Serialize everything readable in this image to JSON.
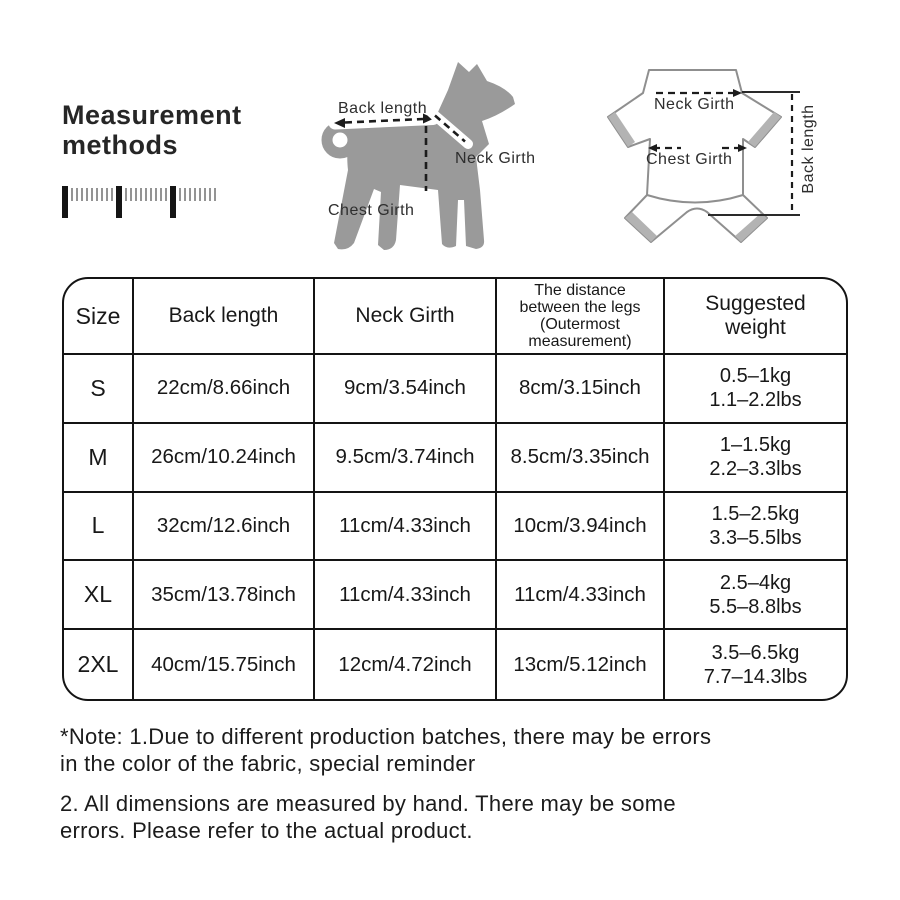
{
  "title": "Measurement\nmethods",
  "theme": {
    "text": "#1f1f1f",
    "dog_gray": "#9a9a9a",
    "outline": "#8f8f8f",
    "cuff": "#b3b3b3",
    "border": "#141414",
    "bg": "#ffffff",
    "dash": "#1c1c1c"
  },
  "icons": {
    "ruler": {
      "name": "ruler-icon",
      "majors": 3,
      "minors": [
        9,
        9,
        8
      ]
    }
  },
  "dog_diagram": {
    "back_length": "Back length",
    "neck_girth": "Neck Girth",
    "chest_girth": "Chest Girth"
  },
  "garment_diagram": {
    "neck_girth": "Neck Girth",
    "chest_girth": "Chest Girth",
    "back_length": "Back length"
  },
  "table": {
    "headers": {
      "size": "Size",
      "back_length": "Back length",
      "neck_girth": "Neck Girth",
      "leg_distance": "The distance\nbetween the legs\n(Outermost\nmeasurement)",
      "weight": "Suggested\nweight"
    },
    "rows": [
      {
        "size": "S",
        "back_length": "22cm/8.66inch",
        "neck_girth": "9cm/3.54inch",
        "leg_distance": "8cm/3.15inch",
        "weight_kg": "0.5–1kg",
        "weight_lbs": "1.1–2.2lbs"
      },
      {
        "size": "M",
        "back_length": "26cm/10.24inch",
        "neck_girth": "9.5cm/3.74inch",
        "leg_distance": "8.5cm/3.35inch",
        "weight_kg": "1–1.5kg",
        "weight_lbs": "2.2–3.3lbs"
      },
      {
        "size": "L",
        "back_length": "32cm/12.6inch",
        "neck_girth": "11cm/4.33inch",
        "leg_distance": "10cm/3.94inch",
        "weight_kg": "1.5–2.5kg",
        "weight_lbs": "3.3–5.5lbs"
      },
      {
        "size": "XL",
        "back_length": "35cm/13.78inch",
        "neck_girth": "11cm/4.33inch",
        "leg_distance": "11cm/4.33inch",
        "weight_kg": "2.5–4kg",
        "weight_lbs": "5.5–8.8lbs"
      },
      {
        "size": "2XL",
        "back_length": "40cm/15.75inch",
        "neck_girth": "12cm/4.72inch",
        "leg_distance": "13cm/5.12inch",
        "weight_kg": "3.5–6.5kg",
        "weight_lbs": "7.7–14.3lbs"
      }
    ]
  },
  "notes": [
    "*Note: 1.Due to different production batches, there may be errors\nin the color of the fabric, special reminder",
    "2. All dimensions are measured by hand. There may be some\nerrors. Please refer to the actual product."
  ]
}
